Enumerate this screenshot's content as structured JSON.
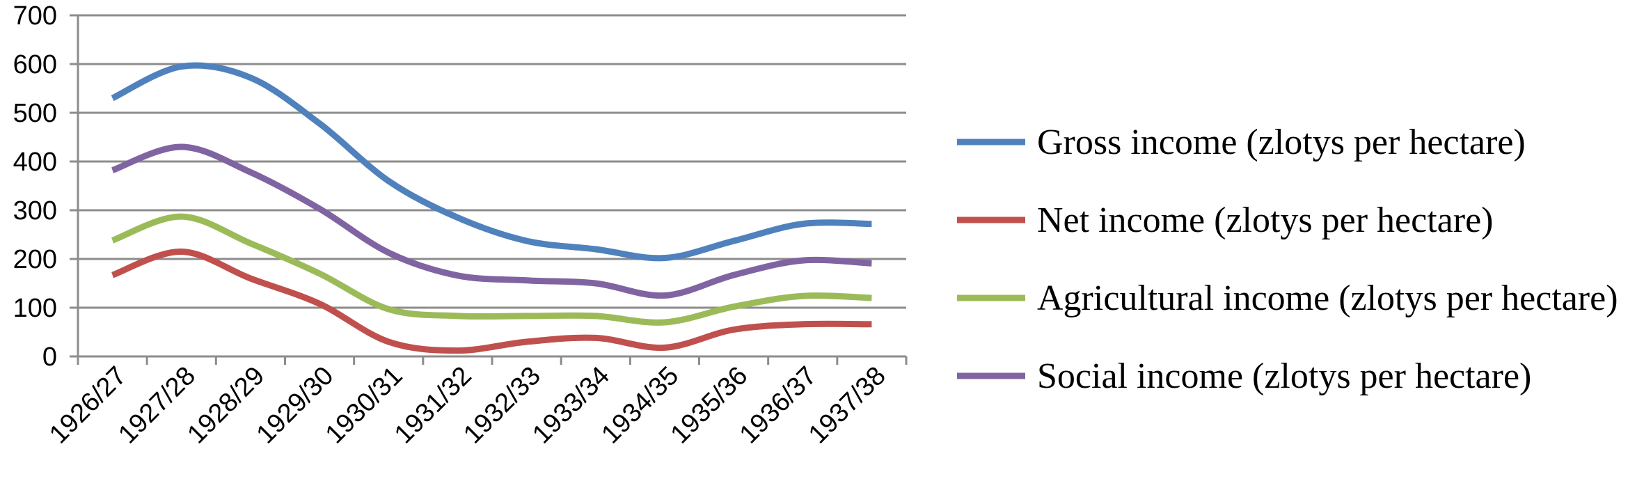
{
  "chart_data": {
    "type": "line",
    "title": "",
    "xlabel": "",
    "ylabel": "",
    "ylim": [
      0,
      700
    ],
    "yticks": [
      0,
      100,
      200,
      300,
      400,
      500,
      600,
      700
    ],
    "grid": true,
    "legend_position": "right",
    "categories": [
      "1926/27",
      "1927/28",
      "1928/29",
      "1929/30",
      "1930/31",
      "1931/32",
      "1932/33",
      "1933/34",
      "1934/35",
      "1935/36",
      "1936/37",
      "1937/38"
    ],
    "series": [
      {
        "name": "Gross income (zlotys per hectare)",
        "color": "#4F81BD",
        "values": [
          530,
          595,
          572,
          478,
          360,
          285,
          237,
          220,
          202,
          237,
          272,
          272
        ]
      },
      {
        "name": "Net income (zlotys per hectare)",
        "color": "#C0504D",
        "values": [
          167,
          215,
          160,
          108,
          30,
          12,
          30,
          38,
          18,
          55,
          66,
          66
        ]
      },
      {
        "name": "Agricultural income (zlotys per hectare)",
        "color": "#9BBB59",
        "values": [
          238,
          287,
          232,
          170,
          97,
          83,
          83,
          83,
          70,
          102,
          124,
          120
        ]
      },
      {
        "name": "Social income (zlotys per hectare)",
        "color": "#8064A2",
        "values": [
          382,
          430,
          378,
          303,
          213,
          166,
          156,
          150,
          125,
          167,
          197,
          191
        ]
      }
    ]
  }
}
